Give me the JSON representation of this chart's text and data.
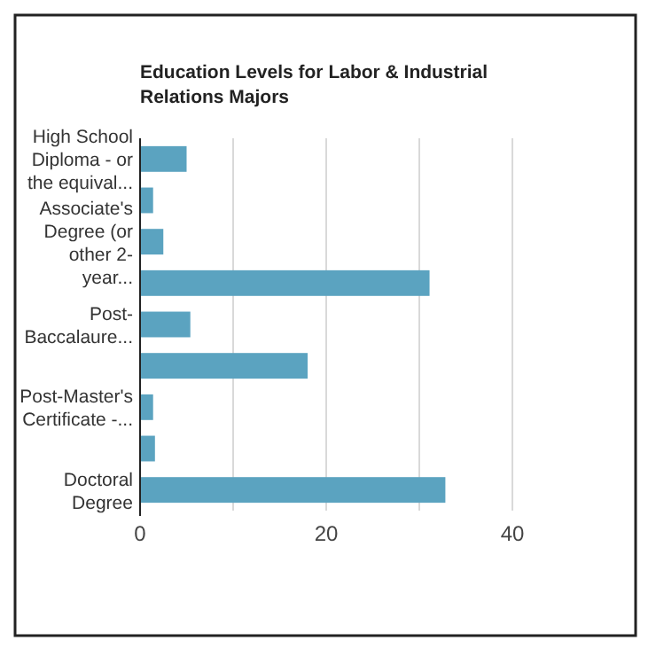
{
  "chart_data": {
    "type": "bar",
    "orientation": "horizontal",
    "title": "Education Levels for Labor & Industrial Relations Majors",
    "categories": [
      "High School Diploma - or the equival...",
      null,
      "Associate's Degree (or other 2-year...",
      null,
      "Post-Baccalaure...",
      null,
      "Post-Master's Certificate -...",
      null,
      "Doctoral Degree"
    ],
    "values": [
      5.0,
      1.4,
      2.5,
      31.1,
      5.4,
      18.0,
      1.4,
      1.6,
      32.8
    ],
    "color": "#5ba3c0",
    "xlim": [
      0,
      40
    ],
    "xticks": [
      0,
      {
        "value": 10,
        "label": null
      },
      20,
      {
        "value": 30,
        "label": null
      },
      40
    ],
    "grid": "x"
  }
}
